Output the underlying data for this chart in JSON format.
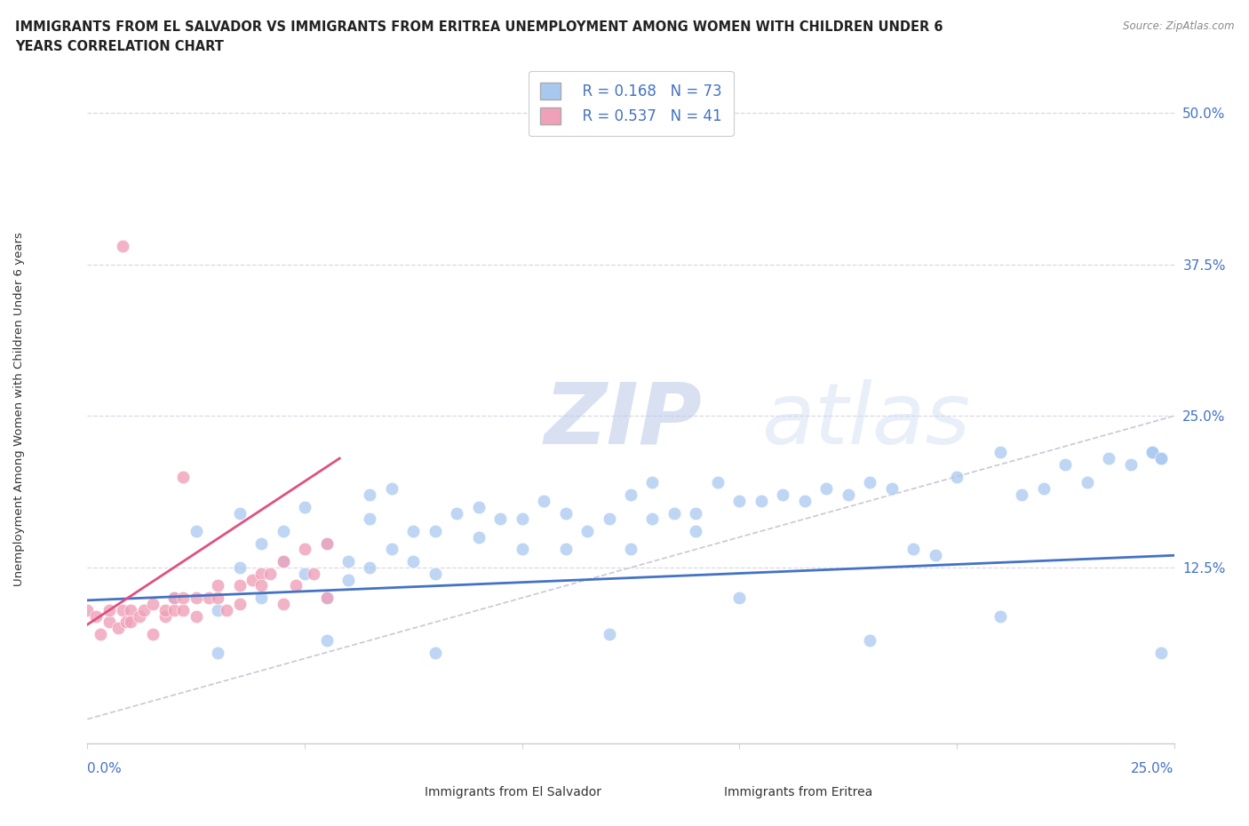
{
  "title_line1": "IMMIGRANTS FROM EL SALVADOR VS IMMIGRANTS FROM ERITREA UNEMPLOYMENT AMONG WOMEN WITH CHILDREN UNDER 6",
  "title_line2": "YEARS CORRELATION CHART",
  "source": "Source: ZipAtlas.com",
  "ylabel": "Unemployment Among Women with Children Under 6 years",
  "yticks": [
    "12.5%",
    "25.0%",
    "37.5%",
    "50.0%"
  ],
  "ytick_vals": [
    0.125,
    0.25,
    0.375,
    0.5
  ],
  "xlim": [
    0.0,
    0.25
  ],
  "ylim": [
    -0.02,
    0.535
  ],
  "color_blue": "#A8C8F0",
  "color_pink": "#F0A0B8",
  "color_blue_text": "#4472C4",
  "trendline_blue": "#4472C4",
  "trendline_pink": "#E05080",
  "ref_line_color": "#C8C8D8",
  "legend_r1": "R = 0.168",
  "legend_n1": "N = 73",
  "legend_r2": "R = 0.537",
  "legend_n2": "N = 41",
  "blue_scatter_x": [
    0.02,
    0.025,
    0.03,
    0.035,
    0.035,
    0.04,
    0.04,
    0.045,
    0.045,
    0.05,
    0.05,
    0.055,
    0.055,
    0.06,
    0.06,
    0.065,
    0.065,
    0.065,
    0.07,
    0.07,
    0.075,
    0.075,
    0.08,
    0.08,
    0.085,
    0.09,
    0.09,
    0.095,
    0.1,
    0.1,
    0.105,
    0.11,
    0.11,
    0.115,
    0.12,
    0.125,
    0.125,
    0.13,
    0.13,
    0.135,
    0.14,
    0.14,
    0.145,
    0.15,
    0.155,
    0.16,
    0.165,
    0.17,
    0.175,
    0.18,
    0.185,
    0.19,
    0.195,
    0.2,
    0.21,
    0.215,
    0.22,
    0.225,
    0.23,
    0.235,
    0.24,
    0.245,
    0.247,
    0.03,
    0.055,
    0.08,
    0.12,
    0.15,
    0.18,
    0.21,
    0.245,
    0.247,
    0.247
  ],
  "blue_scatter_y": [
    0.1,
    0.155,
    0.09,
    0.125,
    0.17,
    0.145,
    0.1,
    0.13,
    0.155,
    0.12,
    0.175,
    0.1,
    0.145,
    0.13,
    0.115,
    0.125,
    0.165,
    0.185,
    0.19,
    0.14,
    0.155,
    0.13,
    0.155,
    0.12,
    0.17,
    0.175,
    0.15,
    0.165,
    0.14,
    0.165,
    0.18,
    0.17,
    0.14,
    0.155,
    0.165,
    0.14,
    0.185,
    0.165,
    0.195,
    0.17,
    0.17,
    0.155,
    0.195,
    0.18,
    0.18,
    0.185,
    0.18,
    0.19,
    0.185,
    0.195,
    0.19,
    0.14,
    0.135,
    0.2,
    0.22,
    0.185,
    0.19,
    0.21,
    0.195,
    0.215,
    0.21,
    0.22,
    0.215,
    0.055,
    0.065,
    0.055,
    0.07,
    0.1,
    0.065,
    0.085,
    0.22,
    0.215,
    0.055
  ],
  "pink_scatter_x": [
    0.0,
    0.002,
    0.003,
    0.005,
    0.005,
    0.007,
    0.008,
    0.009,
    0.01,
    0.01,
    0.012,
    0.013,
    0.015,
    0.015,
    0.018,
    0.018,
    0.02,
    0.02,
    0.022,
    0.022,
    0.025,
    0.025,
    0.028,
    0.03,
    0.03,
    0.032,
    0.035,
    0.035,
    0.038,
    0.04,
    0.04,
    0.042,
    0.045,
    0.045,
    0.048,
    0.05,
    0.052,
    0.055,
    0.055,
    0.022,
    0.008
  ],
  "pink_scatter_y": [
    0.09,
    0.085,
    0.07,
    0.08,
    0.09,
    0.075,
    0.09,
    0.08,
    0.09,
    0.08,
    0.085,
    0.09,
    0.07,
    0.095,
    0.085,
    0.09,
    0.09,
    0.1,
    0.09,
    0.1,
    0.1,
    0.085,
    0.1,
    0.11,
    0.1,
    0.09,
    0.11,
    0.095,
    0.115,
    0.12,
    0.11,
    0.12,
    0.13,
    0.095,
    0.11,
    0.14,
    0.12,
    0.145,
    0.1,
    0.2,
    0.39
  ],
  "blue_trend_x": [
    0.0,
    0.25
  ],
  "blue_trend_y": [
    0.098,
    0.135
  ],
  "pink_trend_x": [
    0.0,
    0.058
  ],
  "pink_trend_y": [
    0.078,
    0.215
  ],
  "ref_line_x": [
    0.0,
    0.25
  ],
  "ref_line_y": [
    0.0,
    0.25
  ]
}
